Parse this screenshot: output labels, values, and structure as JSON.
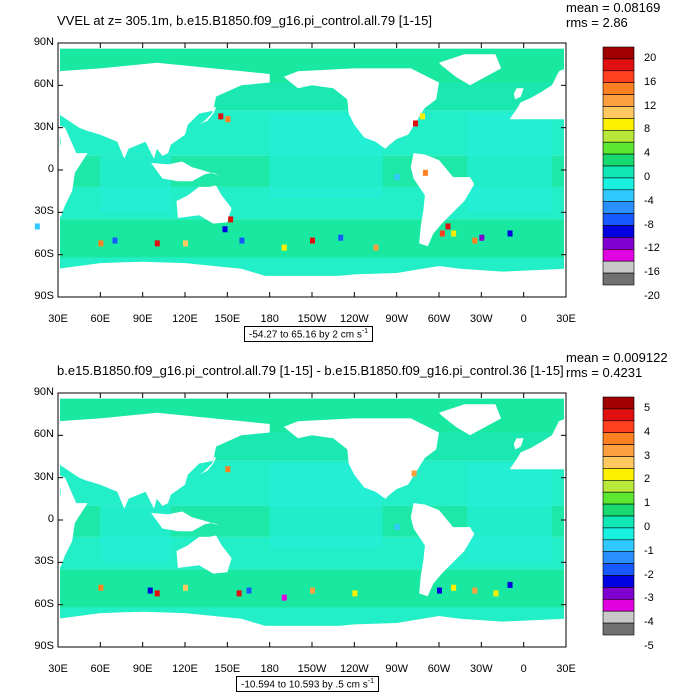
{
  "chart_data": [
    {
      "type": "heatmap",
      "title": "VVEL at z= 305.1m, b.e15.B1850.f09_g16.pi_control.all.79 [1-15]",
      "mean_label": "mean = 0.08169",
      "rms_label": "rms = 2.86",
      "range_label": "-54.27 to 65.16 by 2 cm s",
      "range_sup": "-1",
      "x_ticks": [
        "30E",
        "60E",
        "90E",
        "120E",
        "150E",
        "180",
        "150W",
        "120W",
        "90W",
        "60W",
        "30W",
        "0",
        "30E"
      ],
      "y_ticks": [
        "90N",
        "60N",
        "30N",
        "0",
        "30S",
        "60S",
        "90S"
      ],
      "colorbar_levels": [
        "20",
        "16",
        "12",
        "8",
        "4",
        "0",
        "-4",
        "-8",
        "-12",
        "-16",
        "-20"
      ],
      "colorbar_min": -20,
      "colorbar_max": 20
    },
    {
      "type": "heatmap",
      "title": "b.e15.B1850.f09_g16.pi_control.all.79 [1-15] - b.e15.B1850.f09_g16.pi_control.36 [1-15]",
      "mean_label": "mean = 0.009122",
      "rms_label": "rms = 0.4231",
      "range_label": "-10.594 to 10.593 by .5 cm s",
      "range_sup": "-1",
      "x_ticks": [
        "30E",
        "60E",
        "90E",
        "120E",
        "150E",
        "180",
        "150W",
        "120W",
        "90W",
        "60W",
        "30W",
        "0",
        "30E"
      ],
      "y_ticks": [
        "90N",
        "60N",
        "30N",
        "0",
        "30S",
        "60S",
        "90S"
      ],
      "colorbar_levels": [
        "5",
        "4",
        "3",
        "2",
        "1",
        "0",
        "-1",
        "-2",
        "-3",
        "-4",
        "-5"
      ],
      "colorbar_min": -5,
      "colorbar_max": 5
    }
  ],
  "colors": {
    "ocean_base": "#19e8a0",
    "ocean_light": "#22f0d8",
    "land": "#ffffff",
    "colorbar": [
      "#a00000",
      "#e01010",
      "#ff4020",
      "#ff8020",
      "#ffa040",
      "#ffc860",
      "#fff000",
      "#b8e838",
      "#5ce830",
      "#18d870",
      "#10e8b8",
      "#18f0e0",
      "#30c8ff",
      "#2a90ff",
      "#1858ff",
      "#0000e0",
      "#8000d0",
      "#e000e0",
      "#c8c8c8",
      "#707070"
    ]
  }
}
